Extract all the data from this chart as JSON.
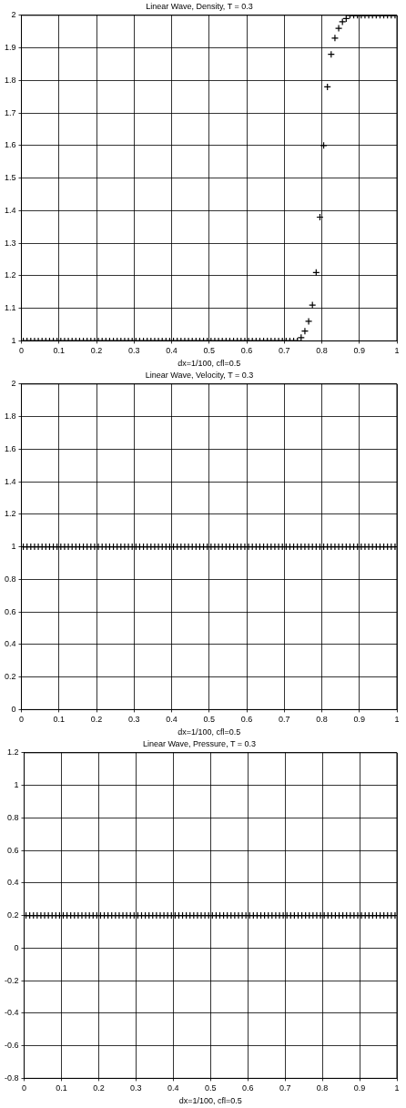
{
  "chart_data": [
    {
      "type": "scatter",
      "title": "Linear Wave, Density, T = 0.3",
      "xlabel": "dx=1/100, cfl=0.5",
      "marker": "cross",
      "grid": true,
      "x": [
        0.005,
        0.015,
        0.025,
        0.035,
        0.045,
        0.055,
        0.065,
        0.075,
        0.085,
        0.095,
        0.105,
        0.115,
        0.125,
        0.135,
        0.145,
        0.155,
        0.165,
        0.175,
        0.185,
        0.195,
        0.205,
        0.215,
        0.225,
        0.235,
        0.245,
        0.255,
        0.265,
        0.275,
        0.285,
        0.295,
        0.305,
        0.315,
        0.325,
        0.335,
        0.345,
        0.355,
        0.365,
        0.375,
        0.385,
        0.395,
        0.405,
        0.415,
        0.425,
        0.435,
        0.445,
        0.455,
        0.465,
        0.475,
        0.485,
        0.495,
        0.505,
        0.515,
        0.525,
        0.535,
        0.545,
        0.555,
        0.565,
        0.575,
        0.585,
        0.595,
        0.605,
        0.615,
        0.625,
        0.635,
        0.645,
        0.655,
        0.665,
        0.675,
        0.685,
        0.695,
        0.705,
        0.715,
        0.725,
        0.735,
        0.745,
        0.755,
        0.765,
        0.775,
        0.785,
        0.795,
        0.805,
        0.815,
        0.825,
        0.835,
        0.845,
        0.855,
        0.865,
        0.875,
        0.885,
        0.895,
        0.905,
        0.915,
        0.925,
        0.935,
        0.945,
        0.955,
        0.965,
        0.975,
        0.985,
        0.995
      ],
      "series": [
        {
          "color": "#000000",
          "values": [
            1,
            1,
            1,
            1,
            1,
            1,
            1,
            1,
            1,
            1,
            1,
            1,
            1,
            1,
            1,
            1,
            1,
            1,
            1,
            1,
            1,
            1,
            1,
            1,
            1,
            1,
            1,
            1,
            1,
            1,
            1,
            1,
            1,
            1,
            1,
            1,
            1,
            1,
            1,
            1,
            1,
            1,
            1,
            1,
            1,
            1,
            1,
            1,
            1,
            1,
            1,
            1,
            1,
            1,
            1,
            1,
            1,
            1,
            1,
            1,
            1,
            1,
            1,
            1,
            1,
            1,
            1,
            1,
            1,
            1,
            1,
            1,
            1,
            1,
            1.01,
            1.03,
            1.06,
            1.11,
            1.21,
            1.38,
            1.6,
            1.78,
            1.88,
            1.93,
            1.96,
            1.98,
            1.99,
            2,
            2,
            2,
            2,
            2,
            2,
            2,
            2,
            2,
            2,
            2,
            2,
            2
          ]
        }
      ],
      "xlim": [
        0,
        1
      ],
      "xticks": [
        0,
        0.1,
        0.2,
        0.3,
        0.4,
        0.5,
        0.6,
        0.7,
        0.8,
        0.9,
        1
      ],
      "ylim": [
        1,
        2
      ],
      "yticks": [
        1,
        1.1,
        1.2,
        1.3,
        1.4,
        1.5,
        1.6,
        1.7,
        1.8,
        1.9,
        2
      ]
    },
    {
      "type": "scatter",
      "title": "Linear Wave, Velocity, T = 0.3",
      "xlabel": "dx=1/100, cfl=0.5",
      "marker": "cross",
      "grid": true,
      "x": [
        0.005,
        0.015,
        0.025,
        0.035,
        0.045,
        0.055,
        0.065,
        0.075,
        0.085,
        0.095,
        0.105,
        0.115,
        0.125,
        0.135,
        0.145,
        0.155,
        0.165,
        0.175,
        0.185,
        0.195,
        0.205,
        0.215,
        0.225,
        0.235,
        0.245,
        0.255,
        0.265,
        0.275,
        0.285,
        0.295,
        0.305,
        0.315,
        0.325,
        0.335,
        0.345,
        0.355,
        0.365,
        0.375,
        0.385,
        0.395,
        0.405,
        0.415,
        0.425,
        0.435,
        0.445,
        0.455,
        0.465,
        0.475,
        0.485,
        0.495,
        0.505,
        0.515,
        0.525,
        0.535,
        0.545,
        0.555,
        0.565,
        0.575,
        0.585,
        0.595,
        0.605,
        0.615,
        0.625,
        0.635,
        0.645,
        0.655,
        0.665,
        0.675,
        0.685,
        0.695,
        0.705,
        0.715,
        0.725,
        0.735,
        0.745,
        0.755,
        0.765,
        0.775,
        0.785,
        0.795,
        0.805,
        0.815,
        0.825,
        0.835,
        0.845,
        0.855,
        0.865,
        0.875,
        0.885,
        0.895,
        0.905,
        0.915,
        0.925,
        0.935,
        0.945,
        0.955,
        0.965,
        0.975,
        0.985,
        0.995
      ],
      "series": [
        {
          "color": "#000000",
          "values": [
            1,
            1,
            1,
            1,
            1,
            1,
            1,
            1,
            1,
            1,
            1,
            1,
            1,
            1,
            1,
            1,
            1,
            1,
            1,
            1,
            1,
            1,
            1,
            1,
            1,
            1,
            1,
            1,
            1,
            1,
            1,
            1,
            1,
            1,
            1,
            1,
            1,
            1,
            1,
            1,
            1,
            1,
            1,
            1,
            1,
            1,
            1,
            1,
            1,
            1,
            1,
            1,
            1,
            1,
            1,
            1,
            1,
            1,
            1,
            1,
            1,
            1,
            1,
            1,
            1,
            1,
            1,
            1,
            1,
            1,
            1,
            1,
            1,
            1,
            1,
            1,
            1,
            1,
            1,
            1,
            1,
            1,
            1,
            1,
            1,
            1,
            1,
            1,
            1,
            1,
            1,
            1,
            1,
            1,
            1,
            1,
            1,
            1,
            1,
            1
          ]
        }
      ],
      "xlim": [
        0,
        1
      ],
      "xticks": [
        0,
        0.1,
        0.2,
        0.3,
        0.4,
        0.5,
        0.6,
        0.7,
        0.8,
        0.9,
        1
      ],
      "ylim": [
        0,
        2
      ],
      "yticks": [
        0,
        0.2,
        0.4,
        0.6,
        0.8,
        1,
        1.2,
        1.4,
        1.6,
        1.8,
        2
      ]
    },
    {
      "type": "scatter",
      "title": "Linear Wave, Pressure, T = 0.3",
      "xlabel": "dx=1/100, cfl=0.5",
      "marker": "cross",
      "grid": true,
      "x": [
        0.005,
        0.015,
        0.025,
        0.035,
        0.045,
        0.055,
        0.065,
        0.075,
        0.085,
        0.095,
        0.105,
        0.115,
        0.125,
        0.135,
        0.145,
        0.155,
        0.165,
        0.175,
        0.185,
        0.195,
        0.205,
        0.215,
        0.225,
        0.235,
        0.245,
        0.255,
        0.265,
        0.275,
        0.285,
        0.295,
        0.305,
        0.315,
        0.325,
        0.335,
        0.345,
        0.355,
        0.365,
        0.375,
        0.385,
        0.395,
        0.405,
        0.415,
        0.425,
        0.435,
        0.445,
        0.455,
        0.465,
        0.475,
        0.485,
        0.495,
        0.505,
        0.515,
        0.525,
        0.535,
        0.545,
        0.555,
        0.565,
        0.575,
        0.585,
        0.595,
        0.605,
        0.615,
        0.625,
        0.635,
        0.645,
        0.655,
        0.665,
        0.675,
        0.685,
        0.695,
        0.705,
        0.715,
        0.725,
        0.735,
        0.745,
        0.755,
        0.765,
        0.775,
        0.785,
        0.795,
        0.805,
        0.815,
        0.825,
        0.835,
        0.845,
        0.855,
        0.865,
        0.875,
        0.885,
        0.895,
        0.905,
        0.915,
        0.925,
        0.935,
        0.945,
        0.955,
        0.965,
        0.975,
        0.985,
        0.995
      ],
      "series": [
        {
          "color": "#000000",
          "values": [
            0.2,
            0.2,
            0.2,
            0.2,
            0.2,
            0.2,
            0.2,
            0.2,
            0.2,
            0.2,
            0.2,
            0.2,
            0.2,
            0.2,
            0.2,
            0.2,
            0.2,
            0.2,
            0.2,
            0.2,
            0.2,
            0.2,
            0.2,
            0.2,
            0.2,
            0.2,
            0.2,
            0.2,
            0.2,
            0.2,
            0.2,
            0.2,
            0.2,
            0.2,
            0.2,
            0.2,
            0.2,
            0.2,
            0.2,
            0.2,
            0.2,
            0.2,
            0.2,
            0.2,
            0.2,
            0.2,
            0.2,
            0.2,
            0.2,
            0.2,
            0.2,
            0.2,
            0.2,
            0.2,
            0.2,
            0.2,
            0.2,
            0.2,
            0.2,
            0.2,
            0.2,
            0.2,
            0.2,
            0.2,
            0.2,
            0.2,
            0.2,
            0.2,
            0.2,
            0.2,
            0.2,
            0.2,
            0.2,
            0.2,
            0.2,
            0.2,
            0.2,
            0.2,
            0.2,
            0.2,
            0.2,
            0.2,
            0.2,
            0.2,
            0.2,
            0.2,
            0.2,
            0.2,
            0.2,
            0.2,
            0.2,
            0.2,
            0.2,
            0.2,
            0.2,
            0.2,
            0.2,
            0.2,
            0.2,
            0.2
          ]
        }
      ],
      "xlim": [
        0,
        1
      ],
      "xticks": [
        0,
        0.1,
        0.2,
        0.3,
        0.4,
        0.5,
        0.6,
        0.7,
        0.8,
        0.9,
        1
      ],
      "ylim": [
        -0.8,
        1.2
      ],
      "yticks": [
        -0.8,
        -0.6,
        -0.4,
        -0.2,
        0,
        0.2,
        0.4,
        0.6,
        0.8,
        1,
        1.2
      ]
    }
  ]
}
